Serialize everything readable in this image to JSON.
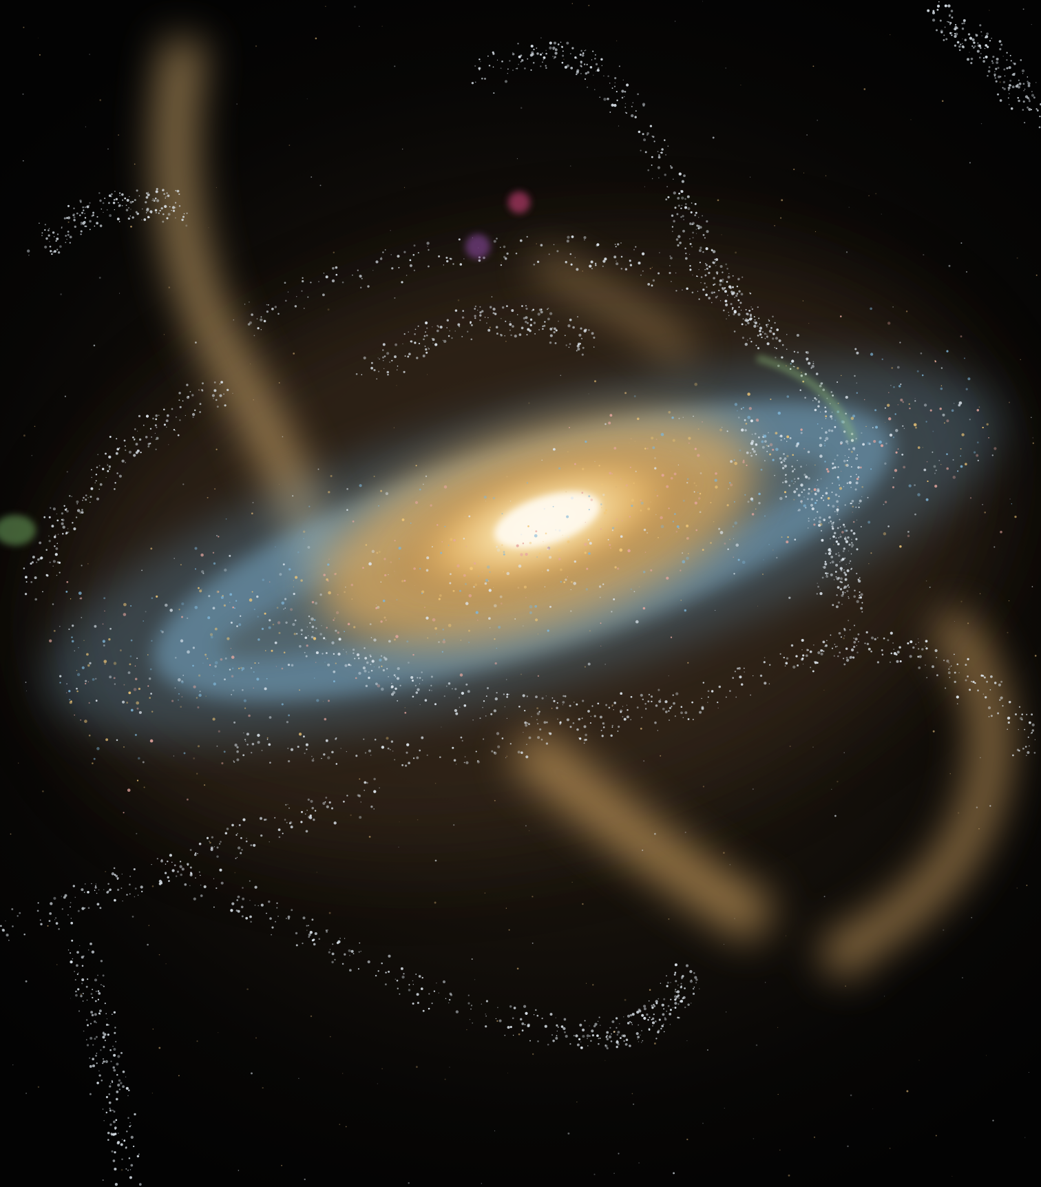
{
  "image": {
    "subject": "galaxy-with-stellar-streams",
    "colors": {
      "background": "#050403",
      "haze": "#2a2116",
      "core": "#fff4d0",
      "bulge": "#f2c878",
      "disk_blue": "#7fb6d8",
      "stream_gold": "#d9b377",
      "stream_white": "#dfe8f0",
      "stream_green": "#9fd08a",
      "knot_magenta": "#c0407a"
    }
  }
}
